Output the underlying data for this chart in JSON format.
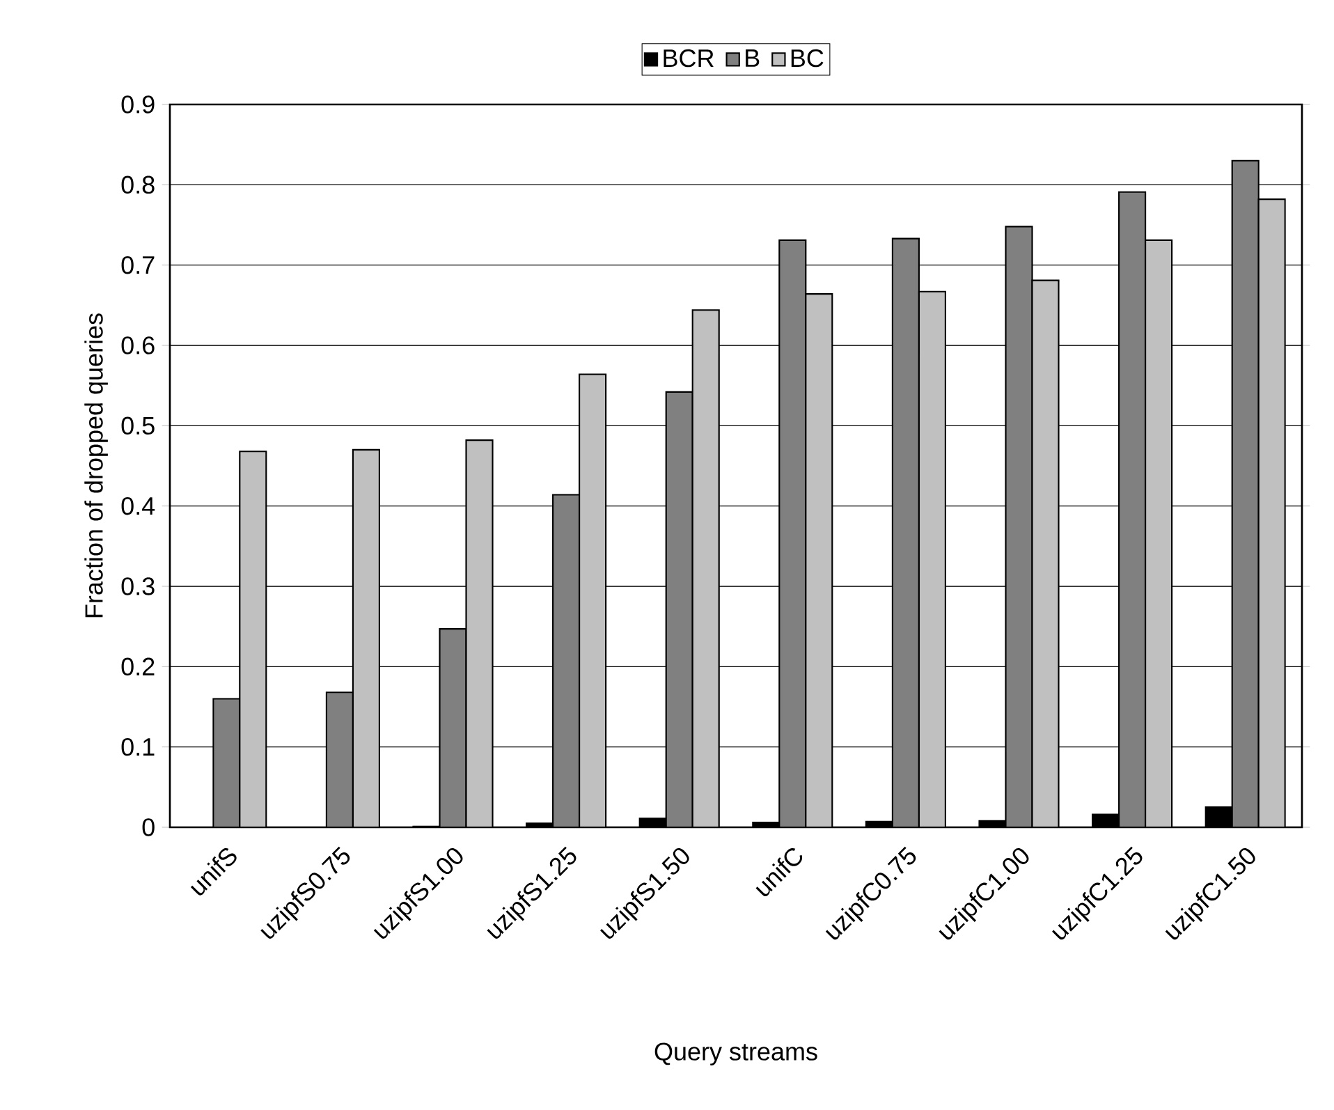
{
  "chart_data": {
    "type": "bar",
    "xlabel": "Query streams",
    "ylabel": "Fraction of dropped queries",
    "categories": [
      "unifS",
      "uzipfS0.75",
      "uzipfS1.00",
      "uzipfS1.25",
      "uzipfS1.50",
      "unifC",
      "uzipfC0.75",
      "uzipfC1.00",
      "uzipfC1.25",
      "uzipfC1.50"
    ],
    "series": [
      {
        "name": "BCR",
        "color": "#000000",
        "values": [
          0,
          0,
          0.001,
          0.005,
          0.011,
          0.006,
          0.007,
          0.008,
          0.016,
          0.025
        ]
      },
      {
        "name": "B",
        "color": "#808080",
        "values": [
          0.16,
          0.168,
          0.247,
          0.414,
          0.542,
          0.731,
          0.733,
          0.748,
          0.791,
          0.83
        ]
      },
      {
        "name": "BC",
        "color": "#c0c0c0",
        "values": [
          0.468,
          0.47,
          0.482,
          0.564,
          0.644,
          0.664,
          0.667,
          0.681,
          0.731,
          0.782
        ]
      }
    ],
    "ylim": [
      0,
      0.9
    ],
    "yticks": [
      0,
      0.1,
      0.2,
      0.3,
      0.4,
      0.5,
      0.6,
      0.7,
      0.8,
      0.9
    ],
    "grid": "y",
    "legend": "top"
  }
}
